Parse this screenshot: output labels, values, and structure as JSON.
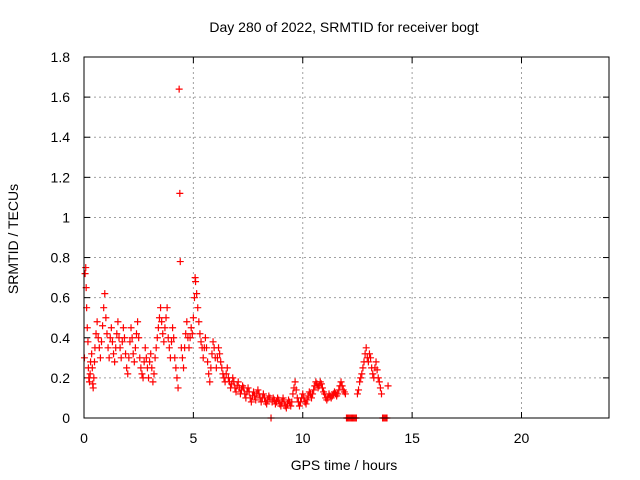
{
  "chart_data": {
    "type": "scatter",
    "title": "Day 280 of 2022, SRMTID for receiver bogt",
    "xlabel": "GPS time / hours",
    "ylabel": "SRMTID / TECUs",
    "xlim": [
      0,
      24
    ],
    "ylim": [
      0,
      1.8
    ],
    "xticks": [
      0,
      5,
      10,
      15,
      20
    ],
    "xtick_labels": [
      "0",
      "5",
      "10",
      "15",
      "20"
    ],
    "yticks": [
      0,
      0.2,
      0.4,
      0.6,
      0.8,
      1.0,
      1.2,
      1.4,
      1.6,
      1.8
    ],
    "ytick_labels": [
      "0",
      "0.2",
      "0.4",
      "0.6",
      "0.8",
      "1",
      "1.2",
      "1.4",
      "1.6",
      "1.8"
    ],
    "grid": true,
    "marker": "+",
    "color": "#ff0000",
    "series": [
      {
        "name": "SRMTID",
        "points": [
          [
            0.02,
            0.3
          ],
          [
            0.05,
            0.72
          ],
          [
            0.08,
            0.75
          ],
          [
            0.1,
            0.65
          ],
          [
            0.12,
            0.55
          ],
          [
            0.15,
            0.45
          ],
          [
            0.18,
            0.38
          ],
          [
            0.2,
            0.25
          ],
          [
            0.22,
            0.2
          ],
          [
            0.25,
            0.18
          ],
          [
            0.28,
            0.22
          ],
          [
            0.3,
            0.28
          ],
          [
            0.35,
            0.32
          ],
          [
            0.38,
            0.25
          ],
          [
            0.4,
            0.17
          ],
          [
            0.42,
            0.15
          ],
          [
            0.45,
            0.2
          ],
          [
            0.48,
            0.28
          ],
          [
            0.5,
            0.35
          ],
          [
            0.55,
            0.42
          ],
          [
            0.6,
            0.48
          ],
          [
            0.65,
            0.4
          ],
          [
            0.7,
            0.35
          ],
          [
            0.75,
            0.3
          ],
          [
            0.8,
            0.38
          ],
          [
            0.85,
            0.46
          ],
          [
            0.9,
            0.55
          ],
          [
            0.95,
            0.62
          ],
          [
            1.0,
            0.5
          ],
          [
            1.05,
            0.42
          ],
          [
            1.1,
            0.35
          ],
          [
            1.15,
            0.3
          ],
          [
            1.2,
            0.4
          ],
          [
            1.25,
            0.45
          ],
          [
            1.3,
            0.38
          ],
          [
            1.35,
            0.32
          ],
          [
            1.4,
            0.28
          ],
          [
            1.45,
            0.35
          ],
          [
            1.5,
            0.42
          ],
          [
            1.55,
            0.48
          ],
          [
            1.6,
            0.4
          ],
          [
            1.65,
            0.35
          ],
          [
            1.7,
            0.3
          ],
          [
            1.75,
            0.38
          ],
          [
            1.8,
            0.45
          ],
          [
            1.85,
            0.4
          ],
          [
            1.9,
            0.32
          ],
          [
            1.95,
            0.25
          ],
          [
            2.0,
            0.22
          ],
          [
            2.05,
            0.3
          ],
          [
            2.1,
            0.38
          ],
          [
            2.15,
            0.45
          ],
          [
            2.2,
            0.4
          ],
          [
            2.25,
            0.32
          ],
          [
            2.3,
            0.28
          ],
          [
            2.35,
            0.35
          ],
          [
            2.4,
            0.42
          ],
          [
            2.45,
            0.48
          ],
          [
            2.5,
            0.4
          ],
          [
            2.55,
            0.3
          ],
          [
            2.6,
            0.25
          ],
          [
            2.65,
            0.22
          ],
          [
            2.7,
            0.2
          ],
          [
            2.75,
            0.28
          ],
          [
            2.8,
            0.35
          ],
          [
            2.85,
            0.3
          ],
          [
            2.9,
            0.25
          ],
          [
            2.95,
            0.2
          ],
          [
            3.0,
            0.28
          ],
          [
            3.05,
            0.32
          ],
          [
            3.1,
            0.25
          ],
          [
            3.15,
            0.18
          ],
          [
            3.2,
            0.22
          ],
          [
            3.25,
            0.3
          ],
          [
            3.3,
            0.35
          ],
          [
            3.35,
            0.4
          ],
          [
            3.4,
            0.45
          ],
          [
            3.45,
            0.5
          ],
          [
            3.5,
            0.55
          ],
          [
            3.55,
            0.48
          ],
          [
            3.6,
            0.42
          ],
          [
            3.65,
            0.38
          ],
          [
            3.7,
            0.45
          ],
          [
            3.75,
            0.5
          ],
          [
            3.8,
            0.55
          ],
          [
            3.85,
            0.4
          ],
          [
            3.9,
            0.35
          ],
          [
            3.95,
            0.3
          ],
          [
            4.0,
            0.38
          ],
          [
            4.05,
            0.45
          ],
          [
            4.1,
            0.4
          ],
          [
            4.15,
            0.3
          ],
          [
            4.2,
            0.25
          ],
          [
            4.25,
            0.2
          ],
          [
            4.3,
            0.15
          ],
          [
            4.35,
            1.64
          ],
          [
            4.38,
            1.12
          ],
          [
            4.4,
            0.78
          ],
          [
            4.45,
            0.35
          ],
          [
            4.5,
            0.3
          ],
          [
            4.55,
            0.25
          ],
          [
            4.6,
            0.35
          ],
          [
            4.65,
            0.42
          ],
          [
            4.7,
            0.48
          ],
          [
            4.75,
            0.4
          ],
          [
            4.8,
            0.35
          ],
          [
            4.85,
            0.4
          ],
          [
            4.9,
            0.45
          ],
          [
            4.95,
            0.42
          ],
          [
            5.0,
            0.5
          ],
          [
            5.05,
            0.6
          ],
          [
            5.08,
            0.7
          ],
          [
            5.1,
            0.68
          ],
          [
            5.15,
            0.62
          ],
          [
            5.2,
            0.55
          ],
          [
            5.25,
            0.48
          ],
          [
            5.3,
            0.42
          ],
          [
            5.35,
            0.38
          ],
          [
            5.4,
            0.35
          ],
          [
            5.45,
            0.3
          ],
          [
            5.5,
            0.35
          ],
          [
            5.55,
            0.4
          ],
          [
            5.6,
            0.35
          ],
          [
            5.65,
            0.28
          ],
          [
            5.7,
            0.22
          ],
          [
            5.75,
            0.18
          ],
          [
            5.8,
            0.25
          ],
          [
            5.85,
            0.32
          ],
          [
            5.9,
            0.38
          ],
          [
            5.95,
            0.35
          ],
          [
            6.0,
            0.3
          ],
          [
            6.05,
            0.25
          ],
          [
            6.1,
            0.3
          ],
          [
            6.15,
            0.35
          ],
          [
            6.2,
            0.32
          ],
          [
            6.25,
            0.28
          ],
          [
            6.3,
            0.25
          ],
          [
            6.35,
            0.22
          ],
          [
            6.4,
            0.2
          ],
          [
            6.45,
            0.18
          ],
          [
            6.5,
            0.22
          ],
          [
            6.55,
            0.25
          ],
          [
            6.6,
            0.2
          ],
          [
            6.65,
            0.18
          ],
          [
            6.7,
            0.15
          ],
          [
            6.75,
            0.17
          ],
          [
            6.8,
            0.2
          ],
          [
            6.85,
            0.18
          ],
          [
            6.9,
            0.15
          ],
          [
            6.95,
            0.13
          ],
          [
            7.0,
            0.16
          ],
          [
            7.05,
            0.18
          ],
          [
            7.1,
            0.15
          ],
          [
            7.15,
            0.12
          ],
          [
            7.2,
            0.14
          ],
          [
            7.25,
            0.16
          ],
          [
            7.3,
            0.15
          ],
          [
            7.35,
            0.12
          ],
          [
            7.4,
            0.1
          ],
          [
            7.45,
            0.13
          ],
          [
            7.5,
            0.15
          ],
          [
            7.55,
            0.13
          ],
          [
            7.6,
            0.1
          ],
          [
            7.65,
            0.08
          ],
          [
            7.7,
            0.11
          ],
          [
            7.75,
            0.13
          ],
          [
            7.8,
            0.11
          ],
          [
            7.85,
            0.09
          ],
          [
            7.9,
            0.12
          ],
          [
            7.95,
            0.14
          ],
          [
            8.0,
            0.12
          ],
          [
            8.05,
            0.1
          ],
          [
            8.1,
            0.08
          ],
          [
            8.15,
            0.1
          ],
          [
            8.2,
            0.12
          ],
          [
            8.25,
            0.1
          ],
          [
            8.3,
            0.08
          ],
          [
            8.35,
            0.07
          ],
          [
            8.4,
            0.09
          ],
          [
            8.45,
            0.11
          ],
          [
            8.5,
            0.1
          ],
          [
            8.55,
            0.0
          ],
          [
            8.6,
            0.08
          ],
          [
            8.65,
            0.1
          ],
          [
            8.7,
            0.09
          ],
          [
            8.75,
            0.07
          ],
          [
            8.8,
            0.08
          ],
          [
            8.85,
            0.1
          ],
          [
            8.9,
            0.09
          ],
          [
            8.95,
            0.07
          ],
          [
            9.0,
            0.06
          ],
          [
            9.05,
            0.08
          ],
          [
            9.1,
            0.1
          ],
          [
            9.15,
            0.08
          ],
          [
            9.2,
            0.06
          ],
          [
            9.25,
            0.05
          ],
          [
            9.3,
            0.07
          ],
          [
            9.35,
            0.09
          ],
          [
            9.4,
            0.08
          ],
          [
            9.45,
            0.06
          ],
          [
            9.5,
            0.08
          ],
          [
            9.55,
            0.12
          ],
          [
            9.6,
            0.15
          ],
          [
            9.65,
            0.18
          ],
          [
            9.7,
            0.14
          ],
          [
            9.75,
            0.1
          ],
          [
            9.8,
            0.08
          ],
          [
            9.85,
            0.06
          ],
          [
            9.9,
            0.08
          ],
          [
            9.95,
            0.1
          ],
          [
            10.0,
            0.12
          ],
          [
            10.05,
            0.1
          ],
          [
            10.1,
            0.08
          ],
          [
            10.15,
            0.07
          ],
          [
            10.2,
            0.09
          ],
          [
            10.25,
            0.11
          ],
          [
            10.3,
            0.13
          ],
          [
            10.35,
            0.12
          ],
          [
            10.4,
            0.1
          ],
          [
            10.45,
            0.12
          ],
          [
            10.5,
            0.14
          ],
          [
            10.55,
            0.16
          ],
          [
            10.6,
            0.18
          ],
          [
            10.65,
            0.17
          ],
          [
            10.7,
            0.15
          ],
          [
            10.75,
            0.16
          ],
          [
            10.8,
            0.18
          ],
          [
            10.85,
            0.17
          ],
          [
            10.9,
            0.15
          ],
          [
            10.95,
            0.13
          ],
          [
            11.0,
            0.12
          ],
          [
            11.05,
            0.1
          ],
          [
            11.1,
            0.09
          ],
          [
            11.15,
            0.1
          ],
          [
            11.2,
            0.12
          ],
          [
            11.25,
            0.11
          ],
          [
            11.3,
            0.1
          ],
          [
            11.35,
            0.11
          ],
          [
            11.4,
            0.12
          ],
          [
            11.45,
            0.13
          ],
          [
            11.5,
            0.12
          ],
          [
            11.55,
            0.11
          ],
          [
            11.6,
            0.12
          ],
          [
            11.65,
            0.14
          ],
          [
            11.7,
            0.16
          ],
          [
            11.75,
            0.18
          ],
          [
            11.8,
            0.16
          ],
          [
            11.85,
            0.14
          ],
          [
            11.9,
            0.13
          ],
          [
            11.95,
            0.12
          ],
          [
            12.0,
            0.0
          ],
          [
            12.05,
            0.0
          ],
          [
            12.1,
            0.0
          ],
          [
            12.15,
            0.0
          ],
          [
            12.2,
            0.0
          ],
          [
            12.25,
            0.0
          ],
          [
            12.3,
            0.0
          ],
          [
            12.35,
            0.0
          ],
          [
            12.4,
            0.0
          ],
          [
            12.45,
            0.0
          ],
          [
            12.5,
            0.12
          ],
          [
            12.55,
            0.14
          ],
          [
            12.6,
            0.18
          ],
          [
            12.65,
            0.2
          ],
          [
            12.7,
            0.22
          ],
          [
            12.75,
            0.25
          ],
          [
            12.8,
            0.28
          ],
          [
            12.85,
            0.32
          ],
          [
            12.9,
            0.35
          ],
          [
            12.95,
            0.3
          ],
          [
            13.0,
            0.28
          ],
          [
            13.05,
            0.32
          ],
          [
            13.1,
            0.3
          ],
          [
            13.15,
            0.25
          ],
          [
            13.2,
            0.22
          ],
          [
            13.25,
            0.2
          ],
          [
            13.3,
            0.25
          ],
          [
            13.35,
            0.28
          ],
          [
            13.4,
            0.24
          ],
          [
            13.45,
            0.2
          ],
          [
            13.5,
            0.18
          ],
          [
            13.55,
            0.15
          ],
          [
            13.6,
            0.12
          ],
          [
            13.65,
            0.0
          ],
          [
            13.7,
            0.0
          ],
          [
            13.75,
            0.0
          ],
          [
            13.8,
            0.0
          ],
          [
            13.85,
            0.0
          ],
          [
            13.9,
            0.16
          ]
        ]
      }
    ]
  }
}
